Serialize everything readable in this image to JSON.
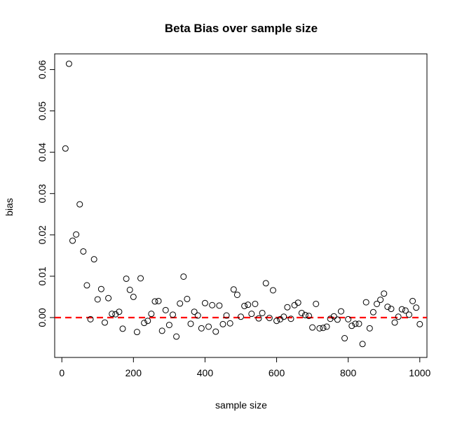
{
  "chart_data": {
    "type": "scatter",
    "title": "Beta Bias over sample size",
    "xlabel": "sample size",
    "ylabel": "bias",
    "xlim": [
      -20,
      1020
    ],
    "ylim": [
      -0.00965,
      0.0638
    ],
    "x_ticks": [
      0,
      200,
      400,
      600,
      800,
      1000
    ],
    "y_ticks": [
      0.0,
      0.01,
      0.02,
      0.03,
      0.04,
      0.05,
      0.06
    ],
    "x_tick_labels": [
      "0",
      "200",
      "400",
      "600",
      "800",
      "1000"
    ],
    "y_tick_labels": [
      "0.00",
      "0.01",
      "0.02",
      "0.03",
      "0.04",
      "0.05",
      "0.06"
    ],
    "reference_line": {
      "y": 0,
      "style": "dashed",
      "color": "#ff0000"
    },
    "marker": "open-circle",
    "point_color": "#000000",
    "grid": false,
    "x": [
      10,
      20,
      30,
      40,
      50,
      60,
      70,
      80,
      90,
      100,
      110,
      120,
      130,
      140,
      150,
      160,
      170,
      180,
      190,
      200,
      210,
      220,
      230,
      240,
      250,
      260,
      270,
      280,
      290,
      300,
      310,
      320,
      330,
      340,
      350,
      360,
      370,
      380,
      390,
      400,
      410,
      420,
      430,
      440,
      450,
      460,
      470,
      480,
      490,
      500,
      510,
      520,
      530,
      540,
      550,
      560,
      570,
      580,
      590,
      600,
      610,
      620,
      630,
      640,
      650,
      660,
      670,
      680,
      690,
      700,
      710,
      720,
      730,
      740,
      750,
      760,
      770,
      780,
      790,
      800,
      810,
      820,
      830,
      840,
      850,
      860,
      870,
      880,
      890,
      900,
      910,
      920,
      930,
      940,
      950,
      960,
      970,
      980,
      990,
      1000
    ],
    "y": [
      0.0409,
      0.0614,
      0.0186,
      0.0201,
      0.0274,
      0.016,
      0.0078,
      -0.0004,
      0.0141,
      0.0044,
      0.0069,
      -0.0012,
      0.0047,
      0.0009,
      0.0008,
      0.0014,
      -0.0027,
      0.0094,
      0.0067,
      0.005,
      -0.0035,
      0.0095,
      -0.0013,
      -0.0008,
      0.0009,
      0.0039,
      0.004,
      -0.0032,
      0.0018,
      -0.0018,
      0.0007,
      -0.0046,
      0.0034,
      0.0099,
      0.0045,
      -0.0015,
      0.0014,
      0.0005,
      -0.0026,
      0.0035,
      -0.0022,
      0.003,
      -0.0034,
      0.0029,
      -0.0016,
      0.0005,
      -0.0014,
      0.0068,
      0.0055,
      0.0002,
      0.0028,
      0.0031,
      0.0009,
      0.0033,
      -0.0002,
      0.0011,
      0.0083,
      -0.0001,
      0.0066,
      -0.0008,
      -0.0004,
      0.0002,
      0.0025,
      -0.0003,
      0.003,
      0.0036,
      0.0011,
      0.0006,
      0.0004,
      -0.0024,
      0.0033,
      -0.0026,
      -0.0025,
      -0.0022,
      -0.0003,
      0.0003,
      -0.0005,
      0.0015,
      -0.005,
      -0.0004,
      -0.002,
      -0.0015,
      -0.0015,
      -0.0064,
      0.0037,
      -0.0026,
      0.0013,
      0.0033,
      0.0043,
      0.0058,
      0.0026,
      0.0021,
      -0.0012,
      0.0002,
      0.002,
      0.0017,
      0.0007,
      0.004,
      0.0024,
      -0.0016
    ]
  }
}
